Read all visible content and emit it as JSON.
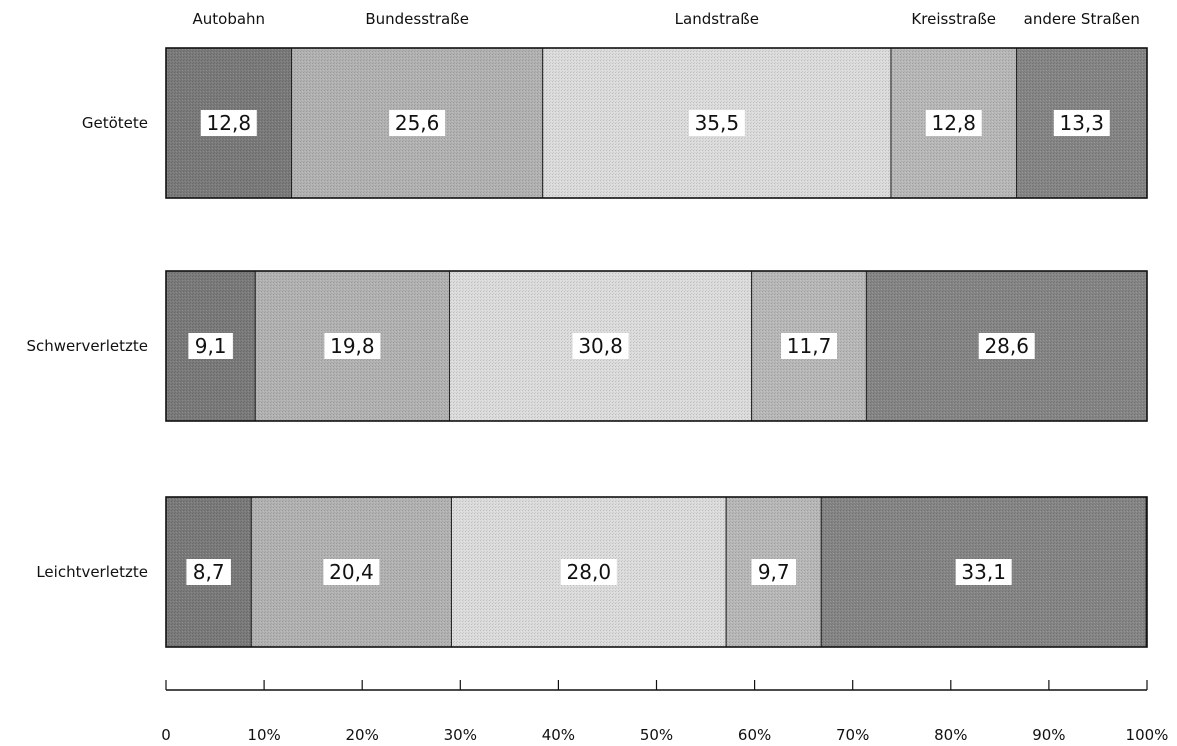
{
  "chart_data": {
    "type": "bar",
    "orientation": "horizontal",
    "stacked": true,
    "normalized_percent": true,
    "categories": [
      "Getötete",
      "Schwerverletzte",
      "Leichtverletzte"
    ],
    "series": [
      {
        "name": "Autobahn",
        "values": [
          12.8,
          9.1,
          8.7
        ],
        "labels": [
          "12,8",
          "9,1",
          "8,7"
        ],
        "color": "#7a7a7a"
      },
      {
        "name": "Bundesstraße",
        "values": [
          25.6,
          19.8,
          20.4
        ],
        "labels": [
          "25,6",
          "19,8",
          "20,4"
        ],
        "color": "#b2b2b2"
      },
      {
        "name": "Landstraße",
        "values": [
          35.5,
          30.8,
          28.0
        ],
        "labels": [
          "35,5",
          "30,8",
          "28,0"
        ],
        "color": "#dcdcdc"
      },
      {
        "name": "Kreisstraße",
        "values": [
          12.8,
          11.7,
          9.7
        ],
        "labels": [
          "12,8",
          "11,7",
          "9,7"
        ],
        "color": "#b8b8b8"
      },
      {
        "name": "andere Straßen",
        "values": [
          13.3,
          28.6,
          33.1
        ],
        "labels": [
          "13,3",
          "28,6",
          "33,1"
        ],
        "color": "#858585"
      }
    ],
    "xlim": [
      0,
      100
    ],
    "xticks": [
      0,
      10,
      20,
      30,
      40,
      50,
      60,
      70,
      80,
      90,
      100
    ],
    "xtick_labels": [
      "0",
      "10%",
      "20%",
      "30%",
      "40%",
      "50%",
      "60%",
      "70%",
      "80%",
      "90%",
      "100%"
    ],
    "legend": "top",
    "grid": false
  }
}
